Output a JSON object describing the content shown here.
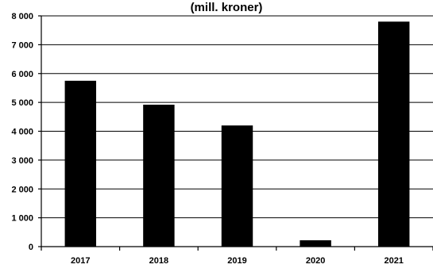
{
  "chart_data": {
    "type": "bar",
    "title": "(mill. kroner)",
    "xlabel": "",
    "ylabel": "",
    "categories": [
      "2017",
      "2018",
      "2019",
      "2020",
      "2021"
    ],
    "values": [
      5750,
      4920,
      4200,
      220,
      7800
    ],
    "ylim": [
      0,
      8000
    ],
    "y_ticks": [
      0,
      1000,
      2000,
      3000,
      4000,
      5000,
      6000,
      7000,
      8000
    ],
    "y_tick_labels": [
      "0",
      "1 000",
      "2 000",
      "3 000",
      "4 000",
      "5 000",
      "6 000",
      "7 000",
      "8 000"
    ],
    "grid": true,
    "legend": "none",
    "bar_color": "#000000"
  }
}
